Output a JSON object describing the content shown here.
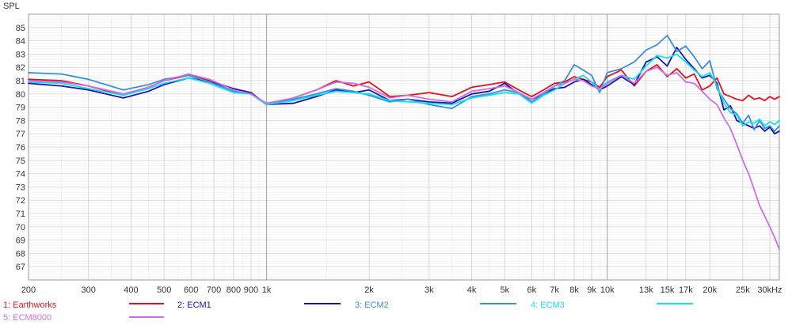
{
  "chart_data": {
    "type": "line",
    "ylabel": "SPL",
    "xscale": "log",
    "xlim": [
      200,
      32000
    ],
    "ylim": [
      66,
      86
    ],
    "grid": true,
    "legend_position": "bottom",
    "yticks": [
      67,
      68,
      69,
      70,
      71,
      72,
      73,
      74,
      75,
      76,
      77,
      78,
      79,
      80,
      81,
      82,
      83,
      84,
      85
    ],
    "xticks": [
      {
        "value": 200,
        "label": "200"
      },
      {
        "value": 300,
        "label": "300"
      },
      {
        "value": 400,
        "label": "400"
      },
      {
        "value": 500,
        "label": "500"
      },
      {
        "value": 600,
        "label": "600"
      },
      {
        "value": 700,
        "label": "700"
      },
      {
        "value": 800,
        "label": "800"
      },
      {
        "value": 900,
        "label": "900"
      },
      {
        "value": 1000,
        "label": "1k"
      },
      {
        "value": 2000,
        "label": "2k"
      },
      {
        "value": 3000,
        "label": "3k"
      },
      {
        "value": 4000,
        "label": "4k"
      },
      {
        "value": 5000,
        "label": "5k"
      },
      {
        "value": 6000,
        "label": "6k"
      },
      {
        "value": 7000,
        "label": "7k"
      },
      {
        "value": 8000,
        "label": "8k"
      },
      {
        "value": 9000,
        "label": "9k"
      },
      {
        "value": 10000,
        "label": "10k"
      },
      {
        "value": 13000,
        "label": "13k"
      },
      {
        "value": 15000,
        "label": "15k"
      },
      {
        "value": 17000,
        "label": "17k"
      },
      {
        "value": 20000,
        "label": "20k"
      },
      {
        "value": 25000,
        "label": "25k"
      },
      {
        "value": 30000,
        "label": "30kHz"
      }
    ],
    "series": [
      {
        "name": "1: Earthworks",
        "color": "#e8101c",
        "x": [
          200,
          250,
          300,
          380,
          450,
          500,
          590,
          680,
          800,
          900,
          1000,
          1200,
          1400,
          1600,
          1800,
          2000,
          2300,
          2600,
          3000,
          3500,
          4000,
          4500,
          5000,
          5500,
          6000,
          6500,
          7000,
          7500,
          8000,
          8500,
          9000,
          9500,
          10000,
          11000,
          12000,
          13000,
          14000,
          15000,
          16000,
          17000,
          18000,
          19000,
          20000,
          21000,
          22000,
          23000,
          24000,
          25000,
          26000,
          27000,
          28000,
          29000,
          30000,
          31000,
          32000
        ],
        "y": [
          81.1,
          81.0,
          80.6,
          79.9,
          80.5,
          81.0,
          81.4,
          81.0,
          80.4,
          80.0,
          79.2,
          79.7,
          80.3,
          81.0,
          80.6,
          80.9,
          79.8,
          79.9,
          80.1,
          79.8,
          80.5,
          80.7,
          80.9,
          80.3,
          79.8,
          80.3,
          80.8,
          80.9,
          81.3,
          81.1,
          80.9,
          80.5,
          81.3,
          81.8,
          80.6,
          81.7,
          82.2,
          81.3,
          81.9,
          81.2,
          81.5,
          80.3,
          80.6,
          81.2,
          80.0,
          79.8,
          79.6,
          79.5,
          79.9,
          79.6,
          79.7,
          79.5,
          79.8,
          79.6,
          79.8
        ]
      },
      {
        "name": "2: ECM1",
        "color": "#1414b4",
        "x": [
          200,
          250,
          300,
          380,
          450,
          500,
          590,
          680,
          800,
          900,
          1000,
          1200,
          1400,
          1600,
          1800,
          2000,
          2300,
          2600,
          3000,
          3500,
          4000,
          4500,
          5000,
          5500,
          6000,
          6500,
          7000,
          7500,
          8000,
          8500,
          9000,
          9500,
          10000,
          11000,
          12000,
          13000,
          14000,
          15000,
          16000,
          17000,
          18000,
          19000,
          20000,
          21000,
          22000,
          23000,
          24000,
          25000,
          26000,
          27000,
          28000,
          29000,
          30000,
          31000,
          32000
        ],
        "y": [
          80.8,
          80.6,
          80.3,
          79.7,
          80.2,
          80.7,
          81.2,
          80.9,
          80.4,
          80.1,
          79.2,
          79.3,
          79.8,
          80.3,
          80.1,
          80.3,
          79.5,
          79.6,
          79.4,
          79.3,
          80.0,
          80.2,
          80.8,
          80.0,
          79.6,
          80.0,
          80.4,
          80.5,
          80.9,
          81.1,
          80.7,
          80.3,
          80.6,
          81.3,
          80.7,
          82.4,
          82.8,
          82.1,
          83.5,
          82.6,
          81.9,
          81.2,
          81.4,
          80.8,
          78.8,
          79.1,
          78.0,
          77.8,
          77.6,
          77.4,
          77.6,
          77.2,
          77.5,
          77.0,
          77.2
        ]
      },
      {
        "name": "3: ECM2",
        "color": "#3a8ee0",
        "x": [
          200,
          250,
          300,
          380,
          450,
          500,
          590,
          680,
          800,
          900,
          1000,
          1200,
          1400,
          1600,
          1800,
          2000,
          2300,
          2600,
          3000,
          3500,
          4000,
          4500,
          5000,
          5500,
          6000,
          6500,
          7000,
          7500,
          8000,
          8500,
          9000,
          9500,
          10000,
          11000,
          12000,
          13000,
          14000,
          15000,
          16000,
          17000,
          18000,
          19000,
          20000,
          21000,
          22000,
          23000,
          24000,
          25000,
          26000,
          27000,
          28000,
          29000,
          30000,
          31000,
          32000
        ],
        "y": [
          81.6,
          81.5,
          81.1,
          80.3,
          80.7,
          81.1,
          81.4,
          80.9,
          80.2,
          80.0,
          79.2,
          79.6,
          80.0,
          80.4,
          80.2,
          79.9,
          79.4,
          79.6,
          79.2,
          78.9,
          79.8,
          80.0,
          80.3,
          80.1,
          79.4,
          80.0,
          80.6,
          81.0,
          82.2,
          81.8,
          81.4,
          80.1,
          81.6,
          81.9,
          82.4,
          83.3,
          83.7,
          84.4,
          83.2,
          83.6,
          82.8,
          81.9,
          82.5,
          80.4,
          79.6,
          78.9,
          78.5,
          77.8,
          78.4,
          77.3,
          78.0,
          77.4,
          77.6,
          77.2,
          77.6
        ]
      },
      {
        "name": "4: ECM3",
        "color": "#12e0ec",
        "x": [
          200,
          250,
          300,
          380,
          450,
          500,
          590,
          680,
          800,
          900,
          1000,
          1200,
          1400,
          1600,
          1800,
          2000,
          2300,
          2600,
          3000,
          3500,
          4000,
          4500,
          5000,
          5500,
          6000,
          6500,
          7000,
          7500,
          8000,
          8500,
          9000,
          9500,
          10000,
          11000,
          12000,
          13000,
          14000,
          15000,
          16000,
          17000,
          18000,
          19000,
          20000,
          21000,
          22000,
          23000,
          24000,
          25000,
          26000,
          27000,
          28000,
          29000,
          30000,
          31000,
          32000
        ],
        "y": [
          80.9,
          80.8,
          80.4,
          79.9,
          80.4,
          80.8,
          81.2,
          80.8,
          80.1,
          80.0,
          79.2,
          79.5,
          79.9,
          80.2,
          80.1,
          80.0,
          79.5,
          79.4,
          79.3,
          79.2,
          79.7,
          79.9,
          80.1,
          80.0,
          79.3,
          79.9,
          80.3,
          80.8,
          81.1,
          81.4,
          80.9,
          80.3,
          80.9,
          81.4,
          81.1,
          82.1,
          82.9,
          82.7,
          83.0,
          82.4,
          81.8,
          81.3,
          81.6,
          80.6,
          79.3,
          78.6,
          78.4,
          77.6,
          77.9,
          77.8,
          78.1,
          77.6,
          77.9,
          77.7,
          78.0
        ]
      },
      {
        "name": "5: ECM8000",
        "color": "#c870e8",
        "x": [
          200,
          250,
          300,
          380,
          450,
          500,
          590,
          680,
          800,
          900,
          1000,
          1200,
          1400,
          1600,
          1800,
          2000,
          2300,
          2600,
          3000,
          3500,
          4000,
          4500,
          5000,
          5500,
          6000,
          6500,
          7000,
          7500,
          8000,
          8500,
          9000,
          9500,
          10000,
          11000,
          12000,
          13000,
          14000,
          15000,
          16000,
          17000,
          18000,
          19000,
          20000,
          21000,
          22000,
          23000,
          24000,
          25000,
          26000,
          27000,
          28000,
          29000,
          30000,
          31000,
          32000
        ],
        "y": [
          81.0,
          80.9,
          80.6,
          80.0,
          80.5,
          81.0,
          81.5,
          81.1,
          80.3,
          80.0,
          79.3,
          79.7,
          80.3,
          80.9,
          80.8,
          80.5,
          79.7,
          79.9,
          79.6,
          79.4,
          80.2,
          80.4,
          80.6,
          80.1,
          79.6,
          80.1,
          80.6,
          80.8,
          81.1,
          81.0,
          80.6,
          80.4,
          80.8,
          81.4,
          80.8,
          81.7,
          82.0,
          81.4,
          81.6,
          80.9,
          80.8,
          80.2,
          79.6,
          79.2,
          78.2,
          77.4,
          76.2,
          75.0,
          74.0,
          72.8,
          71.6,
          70.8,
          70.0,
          69.2,
          68.3
        ]
      }
    ]
  }
}
